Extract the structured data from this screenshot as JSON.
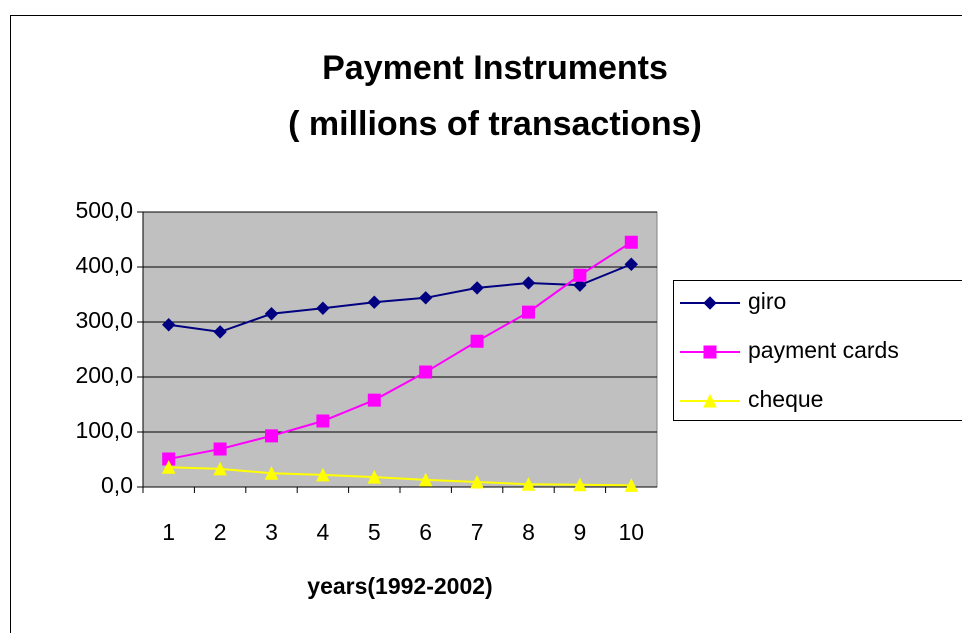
{
  "chart_data": {
    "type": "line",
    "title": "Payment Instruments",
    "subtitle": "( millions of transactions)",
    "x_label": "years(1992-2002)",
    "categories": [
      "1",
      "2",
      "3",
      "4",
      "5",
      "6",
      "7",
      "8",
      "9",
      "10"
    ],
    "series": [
      {
        "name": "giro",
        "color": "#000080",
        "marker": "diamond",
        "values": [
          295,
          282,
          315,
          325,
          336,
          344,
          362,
          371,
          367,
          405
        ]
      },
      {
        "name": "payment cards",
        "color": "#ff00ff",
        "marker": "square",
        "values": [
          51,
          69,
          93,
          120,
          158,
          209,
          265,
          318,
          385,
          445
        ]
      },
      {
        "name": "cheque",
        "color": "#ffff00",
        "marker": "triangle",
        "values": [
          36,
          33,
          25,
          22,
          18,
          13,
          9,
          5,
          4,
          3
        ]
      }
    ],
    "ylim": [
      0,
      500
    ],
    "yticks": [
      {
        "value": 0,
        "label": "0,0"
      },
      {
        "value": 100,
        "label": "100,0"
      },
      {
        "value": 200,
        "label": "200,0"
      },
      {
        "value": 300,
        "label": "300,0"
      },
      {
        "value": 400,
        "label": "400,0"
      },
      {
        "value": 500,
        "label": "500,0"
      }
    ],
    "grid": true,
    "legend": "right",
    "plot_background": "#c0c0c0"
  }
}
